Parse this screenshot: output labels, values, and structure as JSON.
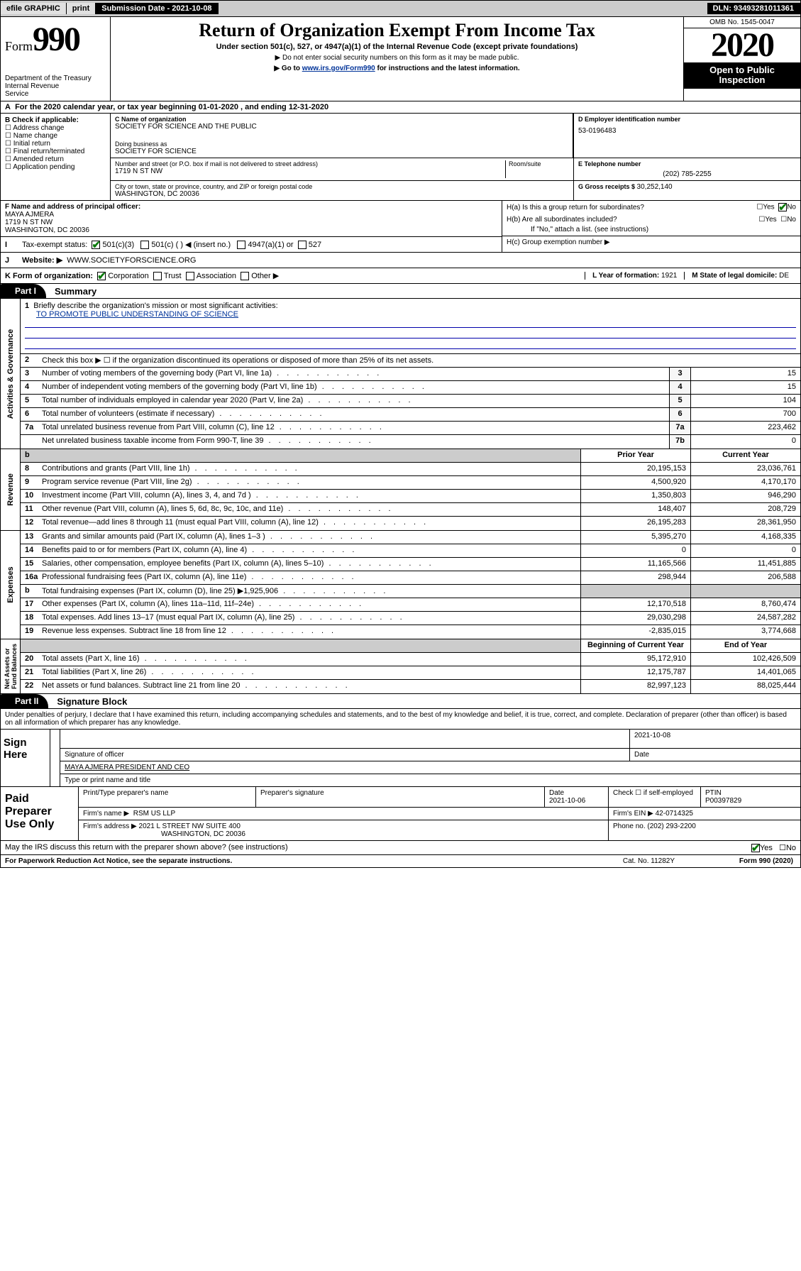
{
  "topbar": {
    "efile": "efile GRAPHIC",
    "print": "print",
    "subdate_label": "Submission Date - ",
    "subdate": "2021-10-08",
    "dln_label": "DLN: ",
    "dln": "93493281011361"
  },
  "header": {
    "form_word": "Form",
    "form_num": "990",
    "dept": "Department of the Treasury\nInternal Revenue\nService",
    "title": "Return of Organization Exempt From Income Tax",
    "subtitle": "Under section 501(c), 527, or 4947(a)(1) of the Internal Revenue Code (except private foundations)",
    "note1": "▶ Do not enter social security numbers on this form as it may be made public.",
    "note2_pre": "▶ Go to ",
    "note2_link": "www.irs.gov/Form990",
    "note2_post": " for instructions and the latest information.",
    "omb": "OMB No. 1545-0047",
    "year": "2020",
    "open": "Open to Public Inspection"
  },
  "line_a": "For the 2020 calendar year, or tax year beginning 01-01-2020    , and ending 12-31-2020",
  "boxB": {
    "label": "B Check if applicable:",
    "opts": [
      "Address change",
      "Name change",
      "Initial return",
      "Final return/terminated",
      "Amended return",
      "Application pending"
    ]
  },
  "c": {
    "name_label": "C Name of organization",
    "name": "SOCIETY FOR SCIENCE AND THE PUBLIC",
    "dba_label": "Doing business as",
    "dba": "SOCIETY FOR SCIENCE",
    "addr_label": "Number and street (or P.O. box if mail is not delivered to street address)",
    "room_label": "Room/suite",
    "addr": "1719 N ST NW",
    "city_label": "City or town, state or province, country, and ZIP or foreign postal code",
    "city": "WASHINGTON, DC  20036"
  },
  "d": {
    "ein_label": "D Employer identification number",
    "ein": "53-0196483",
    "tel_label": "E Telephone number",
    "tel": "(202) 785-2255",
    "g_label": "G Gross receipts $ ",
    "g": "30,252,140"
  },
  "f": {
    "label": "F  Name and address of principal officer:",
    "name": "MAYA AJMERA",
    "addr1": "1719 N ST NW",
    "addr2": "WASHINGTON, DC  20036"
  },
  "h": {
    "a": "H(a)  Is this a group return for subordinates?",
    "b": "H(b)  Are all subordinates included?",
    "b_note": "If \"No,\" attach a list. (see instructions)",
    "c": "H(c)  Group exemption number ▶"
  },
  "i": {
    "label": "Tax-exempt status:",
    "c3": "501(c)(3)",
    "cx": "501(c) (  ) ◀ (insert no.)",
    "a4947": "4947(a)(1) or",
    "s527": "527"
  },
  "j": {
    "label": "Website: ▶",
    "url": "WWW.SOCIETYFORSCIENCE.ORG"
  },
  "k": {
    "label": "K Form of organization:",
    "opts": [
      "Corporation",
      "Trust",
      "Association",
      "Other ▶"
    ],
    "l_label": "L Year of formation: ",
    "l_val": "1921",
    "m_label": "M State of legal domicile: ",
    "m_val": "DE"
  },
  "part1": {
    "tab": "Part I",
    "title": "Summary",
    "l1_label": "Briefly describe the organization's mission or most significant activities:",
    "l1_val": "TO PROMOTE PUBLIC UNDERSTANDING OF SCIENCE",
    "l2": "Check this box ▶ ☐  if the organization discontinued its operations or disposed of more than 25% of its net assets.",
    "lines_short": [
      {
        "n": "3",
        "t": "Number of voting members of the governing body (Part VI, line 1a)",
        "b": "3",
        "v": "15"
      },
      {
        "n": "4",
        "t": "Number of independent voting members of the governing body (Part VI, line 1b)",
        "b": "4",
        "v": "15"
      },
      {
        "n": "5",
        "t": "Total number of individuals employed in calendar year 2020 (Part V, line 2a)",
        "b": "5",
        "v": "104"
      },
      {
        "n": "6",
        "t": "Total number of volunteers (estimate if necessary)",
        "b": "6",
        "v": "700"
      },
      {
        "n": "7a",
        "t": "Total unrelated business revenue from Part VIII, column (C), line 12",
        "b": "7a",
        "v": "223,462"
      },
      {
        "n": "",
        "t": "Net unrelated business taxable income from Form 990-T, line 39",
        "b": "7b",
        "v": "0"
      }
    ],
    "col_hdr_prior": "Prior Year",
    "col_hdr_curr": "Current Year",
    "revenue_lines": [
      {
        "n": "8",
        "t": "Contributions and grants (Part VIII, line 1h)",
        "p": "20,195,153",
        "c": "23,036,761"
      },
      {
        "n": "9",
        "t": "Program service revenue (Part VIII, line 2g)",
        "p": "4,500,920",
        "c": "4,170,170"
      },
      {
        "n": "10",
        "t": "Investment income (Part VIII, column (A), lines 3, 4, and 7d )",
        "p": "1,350,803",
        "c": "946,290"
      },
      {
        "n": "11",
        "t": "Other revenue (Part VIII, column (A), lines 5, 6d, 8c, 9c, 10c, and 11e)",
        "p": "148,407",
        "c": "208,729"
      },
      {
        "n": "12",
        "t": "Total revenue—add lines 8 through 11 (must equal Part VIII, column (A), line 12)",
        "p": "26,195,283",
        "c": "28,361,950"
      }
    ],
    "expense_lines": [
      {
        "n": "13",
        "t": "Grants and similar amounts paid (Part IX, column (A), lines 1–3 )",
        "p": "5,395,270",
        "c": "4,168,335"
      },
      {
        "n": "14",
        "t": "Benefits paid to or for members (Part IX, column (A), line 4)",
        "p": "0",
        "c": "0"
      },
      {
        "n": "15",
        "t": "Salaries, other compensation, employee benefits (Part IX, column (A), lines 5–10)",
        "p": "11,165,566",
        "c": "11,451,885"
      },
      {
        "n": "16a",
        "t": "Professional fundraising fees (Part IX, column (A), line 11e)",
        "p": "298,944",
        "c": "206,588"
      },
      {
        "n": "b",
        "t": "Total fundraising expenses (Part IX, column (D), line 25) ▶1,925,906",
        "p": "",
        "c": ""
      },
      {
        "n": "17",
        "t": "Other expenses (Part IX, column (A), lines 11a–11d, 11f–24e)",
        "p": "12,170,518",
        "c": "8,760,474"
      },
      {
        "n": "18",
        "t": "Total expenses. Add lines 13–17 (must equal Part IX, column (A), line 25)",
        "p": "29,030,298",
        "c": "24,587,282"
      },
      {
        "n": "19",
        "t": "Revenue less expenses. Subtract line 18 from line 12",
        "p": "-2,835,015",
        "c": "3,774,668"
      }
    ],
    "col_hdr_bcy": "Beginning of Current Year",
    "col_hdr_eoy": "End of Year",
    "net_lines": [
      {
        "n": "20",
        "t": "Total assets (Part X, line 16)",
        "p": "95,172,910",
        "c": "102,426,509"
      },
      {
        "n": "21",
        "t": "Total liabilities (Part X, line 26)",
        "p": "12,175,787",
        "c": "14,401,065"
      },
      {
        "n": "22",
        "t": "Net assets or fund balances. Subtract line 21 from line 20",
        "p": "82,997,123",
        "c": "88,025,444"
      }
    ],
    "vbars": {
      "gov": "Activities & Governance",
      "rev": "Revenue",
      "exp": "Expenses",
      "net": "Net Assets or\nFund Balances"
    }
  },
  "part2": {
    "tab": "Part II",
    "title": "Signature Block",
    "declaration": "Under penalties of perjury, I declare that I have examined this return, including accompanying schedules and statements, and to the best of my knowledge and belief, it is true, correct, and complete. Declaration of preparer (other than officer) is based on all information of which preparer has any knowledge."
  },
  "sign": {
    "left": "Sign Here",
    "sig_officer_label": "Signature of officer",
    "date_label": "Date",
    "date": "2021-10-08",
    "name": "MAYA AJMERA  PRESIDENT AND CEO",
    "name_label": "Type or print name and title"
  },
  "paid": {
    "left": "Paid Preparer Use Only",
    "h_prep": "Print/Type preparer's name",
    "h_sig": "Preparer's signature",
    "h_date": "Date",
    "date": "2021-10-06",
    "h_check": "Check ☐ if self-employed",
    "ptin_label": "PTIN",
    "ptin": "P00397829",
    "firm_name_label": "Firm's name    ▶",
    "firm_name": "RSM US LLP",
    "firm_ein_label": "Firm's EIN ▶",
    "firm_ein": "42-0714325",
    "firm_addr_label": "Firm's address ▶",
    "firm_addr1": "2021 L STREET NW SUITE 400",
    "firm_addr2": "WASHINGTON, DC  20036",
    "phone_label": "Phone no. ",
    "phone": "(202) 293-2200"
  },
  "discuss": "May the IRS discuss this return with the preparer shown above? (see instructions)",
  "foot": {
    "paperwork": "For Paperwork Reduction Act Notice, see the separate instructions.",
    "cat": "Cat. No. 11282Y",
    "form": "Form 990 (2020)"
  },
  "yes": "Yes",
  "no": "No"
}
